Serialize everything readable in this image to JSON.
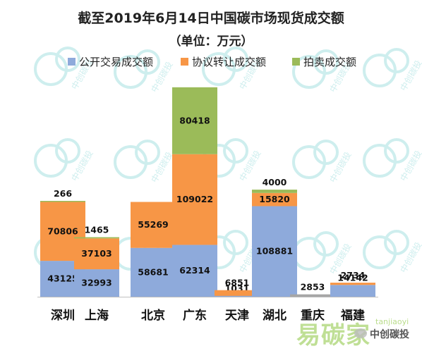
{
  "chart_data": {
    "type": "bar",
    "stacked": true,
    "title": "截至2019年6月14日中国碳市场现货成交额",
    "subtitle": "（单位：万元）",
    "legend_placement": "top",
    "categories": [
      "深圳",
      "上海",
      "北京",
      "广东",
      "天津",
      "湖北",
      "重庆",
      "福建"
    ],
    "series": [
      {
        "name": "公开交易成交额",
        "color": "#8EAADB",
        "values": [
          43125,
          32993,
          58681,
          62314,
          1031,
          108881,
          2853,
          14142
        ]
      },
      {
        "name": "协议转让成交额",
        "color": "#F79646",
        "values": [
          70806,
          37103,
          55269,
          109022,
          6851,
          15820,
          null,
          2734
        ]
      },
      {
        "name": "拍卖成交额",
        "color": "#9BBB59",
        "values": [
          266,
          1465,
          null,
          80418,
          null,
          4000,
          null,
          null
        ]
      }
    ],
    "ylim": [
      0,
      255000
    ],
    "grid": false
  },
  "watermark": {
    "logo_text": "中创碳投",
    "site_text": "易碳家",
    "site_url_text": "tanjiaoyi",
    "brand_text": "中创碳投"
  }
}
